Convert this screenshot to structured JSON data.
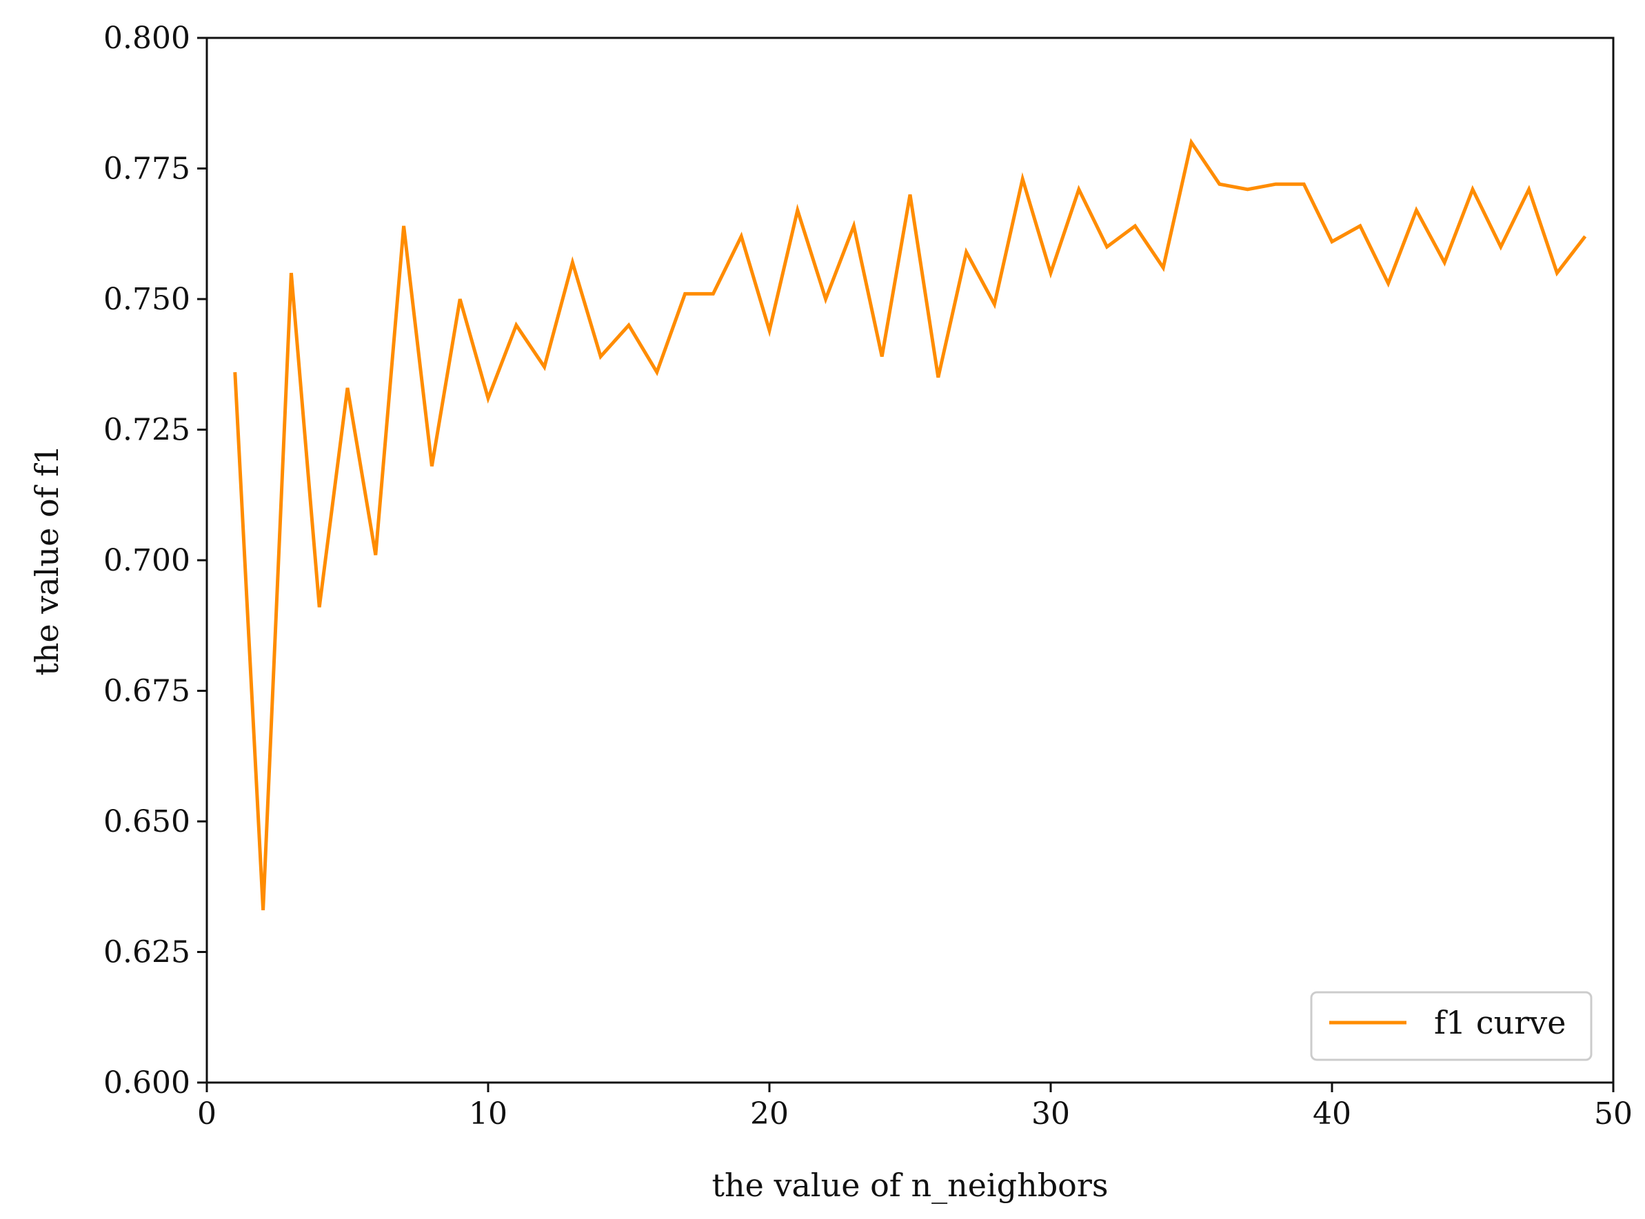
{
  "chart_data": {
    "type": "line",
    "title": "",
    "xlabel": "the value of n_neighbors",
    "ylabel": "the value of f1",
    "xlim": [
      0,
      50
    ],
    "ylim": [
      0.6,
      0.8
    ],
    "xticks": [
      0,
      10,
      20,
      30,
      40,
      50
    ],
    "xtick_labels": [
      "0",
      "10",
      "20",
      "30",
      "40",
      "50"
    ],
    "yticks": [
      0.6,
      0.625,
      0.65,
      0.675,
      0.7,
      0.725,
      0.75,
      0.775,
      0.8
    ],
    "ytick_labels": [
      "0.600",
      "0.625",
      "0.650",
      "0.675",
      "0.700",
      "0.725",
      "0.750",
      "0.775",
      "0.800"
    ],
    "grid": false,
    "legend_position": "lower-right",
    "series": [
      {
        "name": "f1 curve",
        "color": "#ff8c00",
        "x": [
          1,
          2,
          3,
          4,
          5,
          6,
          7,
          8,
          9,
          10,
          11,
          12,
          13,
          14,
          15,
          16,
          17,
          18,
          19,
          20,
          21,
          22,
          23,
          24,
          25,
          26,
          27,
          28,
          29,
          30,
          31,
          32,
          33,
          34,
          35,
          36,
          37,
          38,
          39,
          40,
          41,
          42,
          43,
          44,
          45,
          46,
          47,
          48,
          49
        ],
        "y": [
          0.736,
          0.633,
          0.755,
          0.691,
          0.733,
          0.701,
          0.764,
          0.718,
          0.75,
          0.731,
          0.745,
          0.737,
          0.757,
          0.739,
          0.745,
          0.736,
          0.751,
          0.751,
          0.762,
          0.744,
          0.767,
          0.75,
          0.764,
          0.739,
          0.77,
          0.735,
          0.759,
          0.749,
          0.773,
          0.755,
          0.771,
          0.76,
          0.764,
          0.756,
          0.78,
          0.772,
          0.771,
          0.772,
          0.772,
          0.761,
          0.764,
          0.753,
          0.767,
          0.757,
          0.771,
          0.76,
          0.771,
          0.755,
          0.762
        ]
      }
    ]
  }
}
